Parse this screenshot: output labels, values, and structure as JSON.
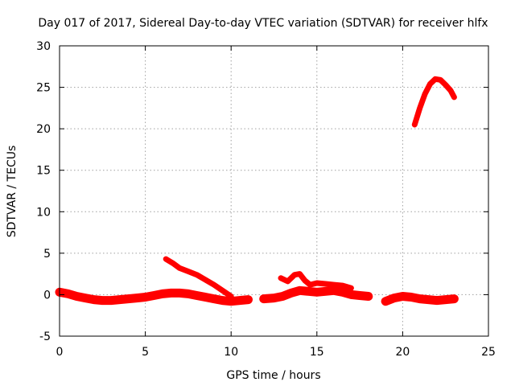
{
  "chart_data": {
    "type": "line",
    "title": "Day 017 of 2017, Sidereal Day-to-day VTEC variation (SDTVAR) for receiver hlfx",
    "xlabel": "GPS time / hours",
    "ylabel": "SDTVAR / TECUs",
    "xlim": [
      0,
      25
    ],
    "ylim": [
      -5,
      30
    ],
    "xticks": [
      0,
      5,
      10,
      15,
      20,
      25
    ],
    "yticks": [
      -5,
      0,
      5,
      10,
      15,
      20,
      25,
      30
    ],
    "grid": true,
    "color": "#ff0000",
    "series": [
      {
        "name": "baseline-a",
        "x": [
          0,
          0.5,
          1,
          1.5,
          2,
          2.5,
          3,
          3.5,
          4,
          4.5,
          5,
          5.5,
          6,
          6.5,
          7,
          7.5,
          8,
          8.5,
          9,
          9.5,
          10,
          10.5,
          11
        ],
        "y": [
          0.3,
          0.1,
          -0.2,
          -0.4,
          -0.6,
          -0.7,
          -0.7,
          -0.6,
          -0.5,
          -0.4,
          -0.3,
          -0.1,
          0.1,
          0.2,
          0.2,
          0.1,
          -0.1,
          -0.3,
          -0.5,
          -0.7,
          -0.8,
          -0.7,
          -0.6
        ]
      },
      {
        "name": "baseline-b",
        "x": [
          11.9,
          12.5,
          13,
          13.5,
          14,
          14.5,
          15,
          15.5,
          16,
          16.5,
          17,
          17.5,
          18
        ],
        "y": [
          -0.5,
          -0.4,
          -0.2,
          0.2,
          0.5,
          0.4,
          0.3,
          0.4,
          0.5,
          0.3,
          0.0,
          -0.1,
          -0.2
        ]
      },
      {
        "name": "baseline-c",
        "x": [
          19,
          19.5,
          20,
          20.5,
          21,
          21.5,
          22,
          22.5,
          23
        ],
        "y": [
          -0.8,
          -0.4,
          -0.2,
          -0.3,
          -0.5,
          -0.6,
          -0.7,
          -0.6,
          -0.5
        ]
      },
      {
        "name": "rise-arc",
        "x": [
          20.7,
          21,
          21.3,
          21.6,
          21.9,
          22.2,
          22.5,
          22.8,
          23
        ],
        "y": [
          20.5,
          22.5,
          24.2,
          25.4,
          26.0,
          25.9,
          25.3,
          24.6,
          23.8
        ]
      },
      {
        "name": "decline-6to10",
        "x": [
          6.2,
          6.6,
          7,
          7.5,
          8,
          8.5,
          9,
          9.5,
          10
        ],
        "y": [
          4.3,
          3.8,
          3.2,
          2.8,
          2.4,
          1.8,
          1.2,
          0.5,
          -0.2
        ]
      },
      {
        "name": "bump-13to17",
        "x": [
          12.9,
          13.3,
          13.7,
          14,
          14.3,
          14.6,
          15,
          15.5,
          16,
          16.5,
          17
        ],
        "y": [
          2.0,
          1.6,
          2.4,
          2.5,
          1.7,
          1.2,
          1.4,
          1.3,
          1.2,
          1.1,
          0.8
        ]
      }
    ]
  }
}
